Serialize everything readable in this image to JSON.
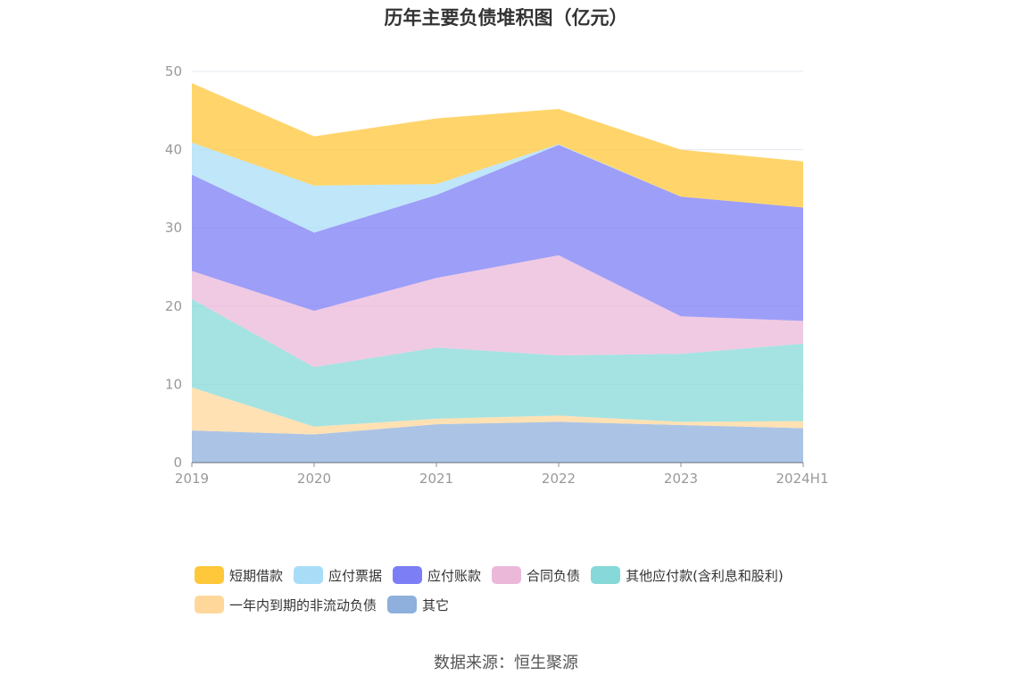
{
  "chart_data": {
    "type": "area",
    "stacked": true,
    "title": "历年主要负债堆积图（亿元）",
    "source": "数据来源：恒生聚源",
    "categories": [
      "2019",
      "2020",
      "2021",
      "2022",
      "2023",
      "2024H1"
    ],
    "ylim": [
      0,
      50
    ],
    "yticks": [
      "0",
      "10",
      "20",
      "30",
      "40",
      "50"
    ],
    "grid": true,
    "legend_position": "bottom",
    "series": [
      {
        "name": "其它",
        "color": "#8FB0DC",
        "values": [
          4.1,
          3.6,
          4.9,
          5.2,
          4.8,
          4.4
        ]
      },
      {
        "name": "一年内到期的非流动负债",
        "color": "#FFD79B",
        "values": [
          5.5,
          1.0,
          0.7,
          0.8,
          0.4,
          0.9
        ]
      },
      {
        "name": "其他应付款(含利息和股利)",
        "color": "#86D9D8",
        "values": [
          11.3,
          7.6,
          9.1,
          7.7,
          8.7,
          9.9
        ]
      },
      {
        "name": "合同负债",
        "color": "#EBB8DA",
        "values": [
          3.6,
          7.2,
          8.9,
          12.8,
          4.8,
          2.9
        ]
      },
      {
        "name": "应付账款",
        "color": "#7C7EF5",
        "values": [
          12.3,
          10.0,
          10.6,
          14.1,
          15.3,
          14.5
        ]
      },
      {
        "name": "应付票据",
        "color": "#A9DDF7",
        "values": [
          4.1,
          6.0,
          1.4,
          0.1,
          0.0,
          0.0
        ]
      },
      {
        "name": "短期借款",
        "color": "#FFC73A",
        "values": [
          7.6,
          6.3,
          8.4,
          4.5,
          6.0,
          5.9
        ]
      }
    ],
    "legend_order": [
      "短期借款",
      "应付票据",
      "应付账款",
      "合同负债",
      "其他应付款(含利息和股利)",
      "一年内到期的非流动负债",
      "其它"
    ]
  }
}
